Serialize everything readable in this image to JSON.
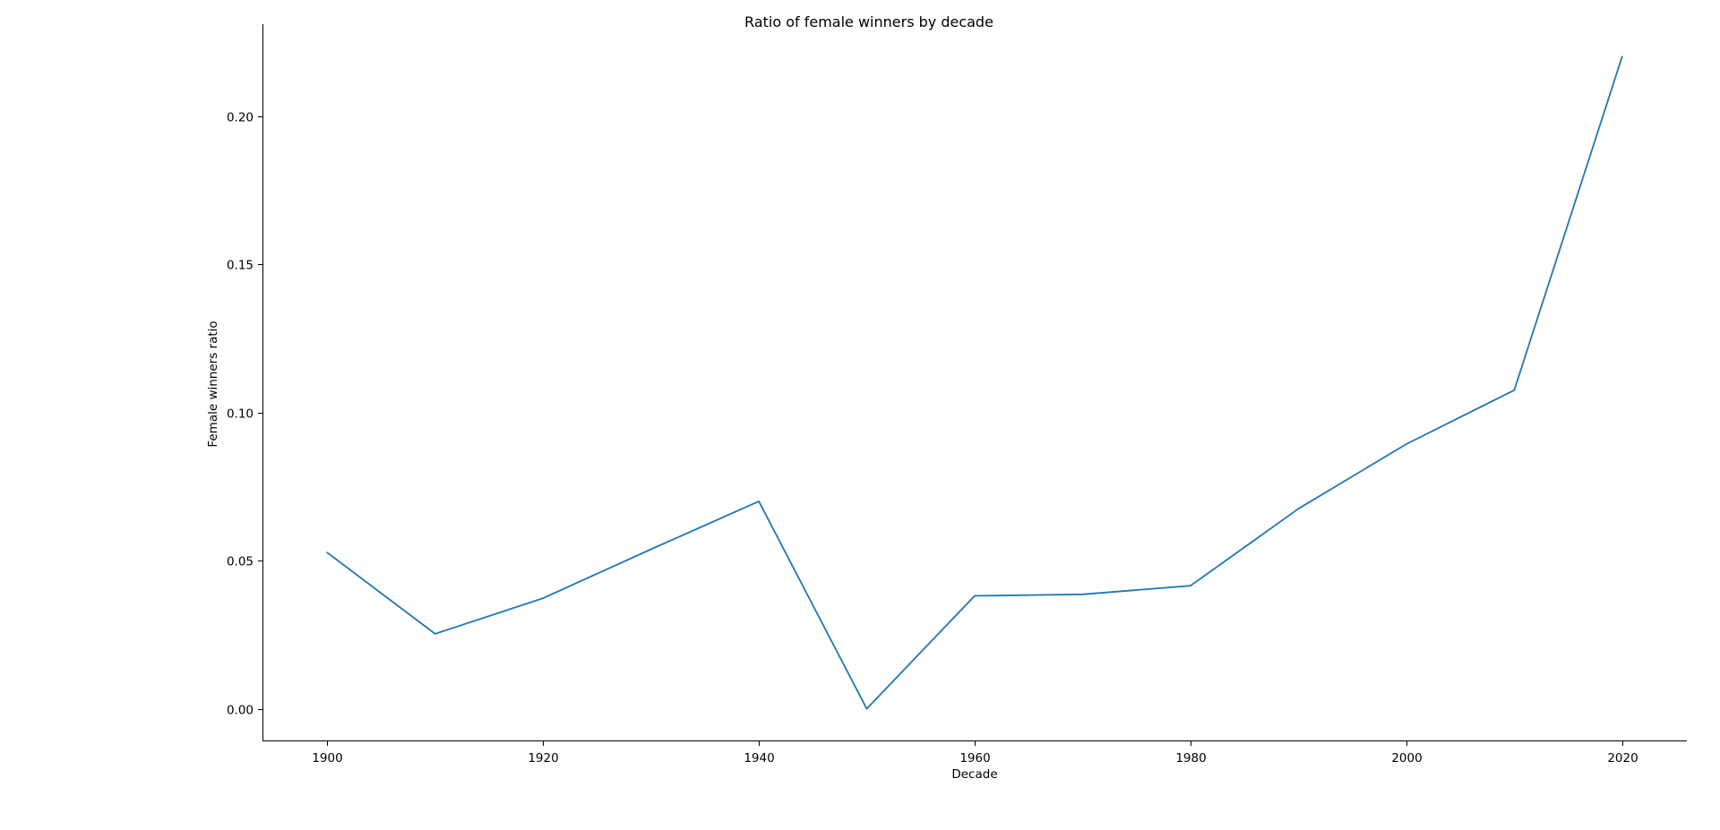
{
  "chart_data": {
    "type": "line",
    "title": "Ratio of female winners by decade",
    "xlabel": "Decade",
    "ylabel": "Female winners ratio",
    "x": [
      1900,
      1910,
      1920,
      1930,
      1940,
      1950,
      1960,
      1970,
      1980,
      1990,
      2000,
      2010,
      2020
    ],
    "series": [
      {
        "values": [
          0.0527,
          0.0253,
          0.0373,
          0.0538,
          0.07,
          0.0,
          0.0381,
          0.0386,
          0.0415,
          0.0675,
          0.0893,
          0.1075,
          0.22
        ]
      }
    ],
    "xlim": [
      1894,
      2026
    ],
    "ylim": [
      -0.011,
      0.231
    ],
    "x_ticks": [
      1900,
      1920,
      1940,
      1960,
      1980,
      2000,
      2020
    ],
    "x_tick_labels": [
      "1900",
      "1920",
      "1940",
      "1960",
      "1980",
      "2000",
      "2020"
    ],
    "y_ticks": [
      0.0,
      0.05,
      0.1,
      0.15,
      0.2
    ],
    "y_tick_labels": [
      "0.00",
      "0.05",
      "0.10",
      "0.15",
      "0.20"
    ],
    "grid": false,
    "legend": "none",
    "line_color": "#1f77b4",
    "spines": "left-bottom"
  }
}
